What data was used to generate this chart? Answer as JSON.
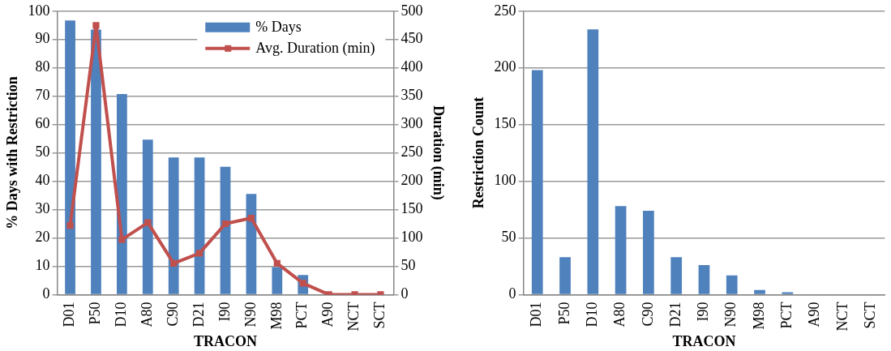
{
  "chart_data": [
    {
      "type": "bar",
      "xlabel": "TRACON",
      "ylabel": "% Days with Restriction",
      "y2label": "Duration (min)",
      "categories": [
        "D01",
        "P50",
        "D10",
        "A80",
        "C90",
        "D21",
        "I90",
        "N90",
        "M98",
        "PCT",
        "A90",
        "NCT",
        "SCT"
      ],
      "series": [
        {
          "name": "% Days",
          "color": "#4f81bd",
          "values": [
            96.7,
            93.5,
            70.8,
            54.7,
            48.4,
            48.4,
            45.1,
            35.5,
            9.7,
            6.9,
            null,
            null,
            null
          ]
        },
        {
          "name": "Avg. Duration (min)",
          "type": "line",
          "axis": "y2",
          "color": "#c0504d",
          "values": [
            122,
            475,
            97,
            127,
            55,
            73,
            125,
            135,
            55,
            20,
            0,
            0,
            0
          ]
        }
      ],
      "ylim": [
        0,
        100
      ],
      "yticks": [
        0,
        10,
        20,
        30,
        40,
        50,
        60,
        70,
        80,
        90,
        100
      ],
      "y2lim": [
        0,
        500
      ],
      "y2ticks": [
        0,
        50,
        100,
        150,
        200,
        250,
        300,
        350,
        400,
        450,
        500
      ],
      "grid": "y",
      "legend": "top right",
      "marker": "square"
    },
    {
      "type": "bar",
      "xlabel": "TRACON",
      "ylabel": "Restriction Count",
      "categories": [
        "D01",
        "P50",
        "D10",
        "A80",
        "C90",
        "D21",
        "I90",
        "N90",
        "M98",
        "PCT",
        "A90",
        "NCT",
        "SCT"
      ],
      "series": [
        {
          "color": "#4f81bd",
          "values": [
            198,
            33,
            234,
            78,
            74,
            33,
            26,
            17,
            4,
            2,
            0,
            0,
            0
          ]
        }
      ],
      "ylim": [
        0,
        250
      ],
      "yticks": [
        0,
        50,
        100,
        150,
        200,
        250
      ],
      "grid": "y"
    }
  ]
}
